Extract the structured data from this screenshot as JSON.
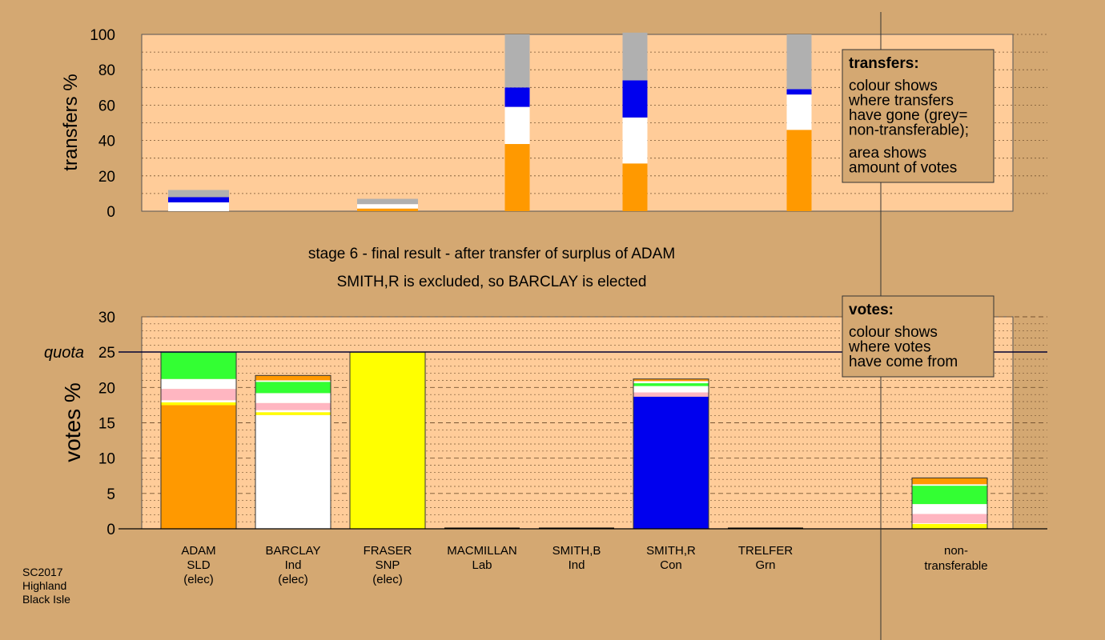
{
  "chart_data": [
    {
      "type": "bar",
      "title": "transfers",
      "ylabel": "transfers %",
      "ylim": [
        0,
        100
      ],
      "yticks": [
        "0",
        "20",
        "40",
        "60",
        "80",
        "100"
      ],
      "bars": [
        {
          "slot": 0,
          "segments": [
            {
              "color": "#ffffff",
              "value": 5
            },
            {
              "color": "#0000ee",
              "value": 3
            },
            {
              "color": "#b0b0b0",
              "value": 4
            }
          ]
        },
        {
          "slot": 2,
          "segments": [
            {
              "color": "#ff9900",
              "value": 1.5
            },
            {
              "color": "#ffffff",
              "value": 2.5
            },
            {
              "color": "#b0b0b0",
              "value": 3
            }
          ]
        },
        {
          "slot": 3.5,
          "segments": [
            {
              "color": "#ff9900",
              "value": 38
            },
            {
              "color": "#ffffff",
              "value": 21
            },
            {
              "color": "#0000ee",
              "value": 11
            },
            {
              "color": "#b0b0b0",
              "value": 30
            }
          ]
        },
        {
          "slot": 4.5,
          "segments": [
            {
              "color": "#ff9900",
              "value": 27
            },
            {
              "color": "#ffffff",
              "value": 26
            },
            {
              "color": "#0000ee",
              "value": 21
            },
            {
              "color": "#b0b0b0",
              "value": 27
            }
          ]
        },
        {
          "slot": 6.5,
          "segments": [
            {
              "color": "#ff9900",
              "value": 46
            },
            {
              "color": "#ffffff",
              "value": 20
            },
            {
              "color": "#0000ee",
              "value": 3
            },
            {
              "color": "#b0b0b0",
              "value": 31
            }
          ]
        }
      ],
      "legend": {
        "title": "transfers:",
        "lines_a": [
          "colour shows",
          "where transfers",
          "have gone (grey=",
          "non-transferable);"
        ],
        "lines_b": [
          "area shows",
          "amount of votes"
        ]
      }
    },
    {
      "type": "bar",
      "ylabel": "votes %",
      "ylim": [
        0,
        30
      ],
      "yticks": [
        "0",
        "5",
        "10",
        "15",
        "20",
        "25",
        "30"
      ],
      "quota_label": "quota",
      "quota": 25,
      "categories": [
        {
          "name": "ADAM",
          "party": "SLD",
          "status": "(elec)"
        },
        {
          "name": "BARCLAY",
          "party": "Ind",
          "status": "(elec)"
        },
        {
          "name": "FRASER",
          "party": "SNP",
          "status": "(elec)"
        },
        {
          "name": "MACMILLAN",
          "party": "Lab",
          "status": ""
        },
        {
          "name": "SMITH,B",
          "party": "Ind",
          "status": ""
        },
        {
          "name": "SMITH,R",
          "party": "Con",
          "status": ""
        },
        {
          "name": "TRELFER",
          "party": "Grn",
          "status": ""
        }
      ],
      "extra_category": [
        "non-",
        "transferable"
      ],
      "bars": [
        {
          "slot": 0,
          "segments": [
            {
              "color": "#ff9900",
              "value": 17.5
            },
            {
              "color": "#ffff00",
              "value": 0.4
            },
            {
              "color": "#ffffff",
              "value": 0.3
            },
            {
              "color": "#ffb6c1",
              "value": 1.6
            },
            {
              "color": "#ffffff",
              "value": 1.4
            },
            {
              "color": "#33ff33",
              "value": 3.8
            }
          ]
        },
        {
          "slot": 1,
          "segments": [
            {
              "color": "#ffffff",
              "value": 16.1
            },
            {
              "color": "#ffff00",
              "value": 0.4
            },
            {
              "color": "#ffffff",
              "value": 0.3
            },
            {
              "color": "#ffb6c1",
              "value": 1.0
            },
            {
              "color": "#ffffff",
              "value": 1.4
            },
            {
              "color": "#33ff33",
              "value": 1.6
            },
            {
              "color": "#ffffff",
              "value": 0.2
            },
            {
              "color": "#ff9900",
              "value": 0.7
            }
          ]
        },
        {
          "slot": 2,
          "segments": [
            {
              "color": "#ffff00",
              "value": 25.0
            }
          ]
        },
        {
          "slot": 3,
          "segments": []
        },
        {
          "slot": 4,
          "segments": []
        },
        {
          "slot": 5,
          "segments": [
            {
              "color": "#0000ee",
              "value": 18.7
            },
            {
              "color": "#ffb6c1",
              "value": 0.6
            },
            {
              "color": "#ffffff",
              "value": 0.9
            },
            {
              "color": "#33ff33",
              "value": 0.4
            },
            {
              "color": "#ffffff",
              "value": 0.3
            },
            {
              "color": "#ff9900",
              "value": 0.3
            }
          ]
        },
        {
          "slot": 6,
          "segments": []
        },
        {
          "slot": 8,
          "segments": [
            {
              "color": "#ffff00",
              "value": 0.7
            },
            {
              "color": "#ffffff",
              "value": 0.1
            },
            {
              "color": "#ffb6c1",
              "value": 1.3
            },
            {
              "color": "#ffffff",
              "value": 1.4
            },
            {
              "color": "#33ff33",
              "value": 2.6
            },
            {
              "color": "#ffffff",
              "value": 0.2
            },
            {
              "color": "#ff9900",
              "value": 0.9
            }
          ]
        }
      ],
      "legend": {
        "title": "votes:",
        "lines_a": [
          "colour shows",
          "where votes",
          "have come from"
        ]
      }
    }
  ],
  "stage_title": "stage 6 - final result - after transfer of surplus of ADAM",
  "stage_subtitle": "SMITH,R is excluded, so BARCLAY is elected",
  "footer": [
    "SC2017",
    "Highland",
    "Black Isle"
  ]
}
